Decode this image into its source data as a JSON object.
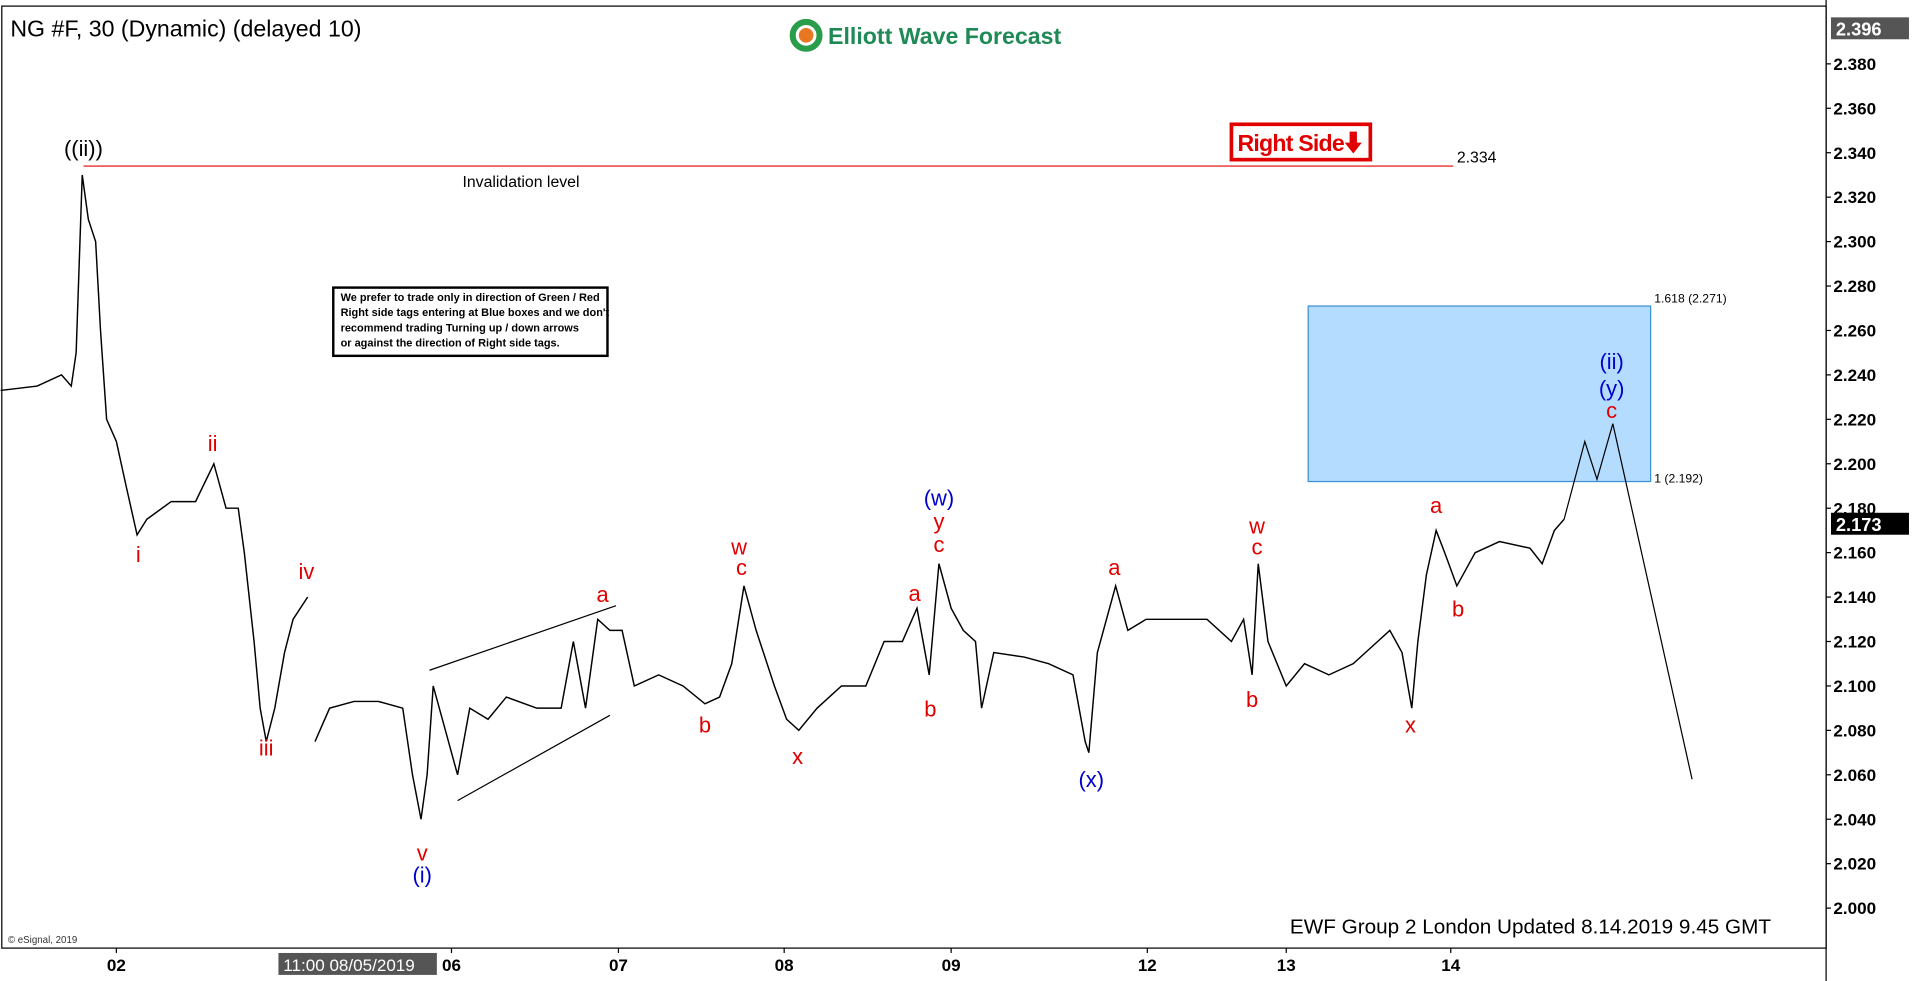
{
  "chart_data": {
    "type": "line",
    "title": "NG #F, 30 (Dynamic) (delayed 10)",
    "brand": "Elliott Wave Forecast",
    "color": "#000000",
    "x": [
      0,
      30,
      50,
      58,
      62,
      67,
      72,
      78,
      82,
      87,
      95,
      103,
      112,
      120,
      140,
      160,
      175,
      185,
      195,
      200,
      208,
      213,
      218,
      225,
      233,
      240,
      252,
      255,
      258,
      270,
      290,
      310,
      330,
      338,
      345,
      350,
      355,
      365,
      375,
      385,
      400,
      415,
      440,
      460,
      470,
      480,
      490,
      500,
      510,
      520,
      540,
      560,
      578,
      590,
      600,
      610,
      620,
      635,
      645,
      655,
      670,
      690,
      710,
      725,
      740,
      752,
      762,
      770,
      780,
      790,
      800,
      805,
      815,
      840,
      860,
      880,
      890,
      893,
      900,
      915,
      925,
      940,
      960,
      990,
      1010,
      1020,
      1027,
      1032,
      1040,
      1055,
      1070,
      1090,
      1110,
      1130,
      1140,
      1150,
      1158,
      1163,
      1170,
      1178,
      1185,
      1195,
      1210,
      1230,
      1255,
      1265,
      1275,
      1283
    ],
    "values": [
      2.233,
      2.235,
      2.24,
      2.235,
      2.25,
      2.33,
      2.31,
      2.3,
      2.26,
      2.22,
      2.21,
      2.19,
      2.168,
      2.175,
      2.183,
      2.183,
      2.2,
      2.18,
      2.18,
      2.16,
      2.12,
      2.09,
      2.075,
      2.09,
      2.115,
      2.13,
      2.14,
      null,
      2.075,
      2.09,
      2.093,
      2.093,
      2.09,
      2.06,
      2.04,
      2.06,
      2.1,
      2.08,
      2.06,
      2.09,
      2.085,
      2.095,
      2.09,
      2.09,
      2.12,
      2.09,
      2.13,
      2.125,
      2.125,
      2.1,
      2.105,
      2.1,
      2.092,
      2.095,
      2.11,
      2.145,
      2.125,
      2.1,
      2.085,
      2.08,
      2.09,
      2.1,
      2.1,
      2.12,
      2.12,
      2.135,
      2.105,
      2.155,
      2.135,
      2.125,
      2.12,
      2.09,
      2.115,
      2.113,
      2.11,
      2.105,
      2.075,
      2.07,
      2.115,
      2.145,
      2.125,
      2.13,
      2.13,
      2.13,
      2.12,
      2.13,
      2.105,
      2.155,
      2.12,
      2.1,
      2.11,
      2.105,
      2.11,
      2.12,
      2.125,
      2.115,
      2.09,
      2.12,
      2.15,
      2.17,
      2.16,
      2.145,
      2.16,
      2.165,
      2.162,
      2.155,
      2.17,
      2.175
    ],
    "projection": {
      "x": [
        1283,
        1300,
        1310,
        1323,
        1388
      ],
      "values": [
        2.175,
        2.21,
        2.193,
        2.218,
        2.058
      ]
    },
    "xlim": [
      0,
      1498
    ],
    "xticks": [
      {
        "value": 95,
        "label": "02"
      },
      {
        "value": 370,
        "label": "06"
      },
      {
        "value": 507,
        "label": "07"
      },
      {
        "value": 643,
        "label": "08"
      },
      {
        "value": 780,
        "label": "09"
      },
      {
        "value": 941,
        "label": "12"
      },
      {
        "value": 1055,
        "label": "13"
      },
      {
        "value": 1190,
        "label": "14"
      }
    ],
    "ylim": [
      1.982,
      2.406
    ],
    "yticks": [
      {
        "value": 2.0,
        "label": "2.000"
      },
      {
        "value": 2.02,
        "label": "2.020"
      },
      {
        "value": 2.04,
        "label": "2.040"
      },
      {
        "value": 2.06,
        "label": "2.060"
      },
      {
        "value": 2.08,
        "label": "2.080"
      },
      {
        "value": 2.1,
        "label": "2.100"
      },
      {
        "value": 2.12,
        "label": "2.120"
      },
      {
        "value": 2.14,
        "label": "2.140"
      },
      {
        "value": 2.16,
        "label": "2.160"
      },
      {
        "value": 2.18,
        "label": "2.180"
      },
      {
        "value": 2.2,
        "label": "2.200"
      },
      {
        "value": 2.22,
        "label": "2.220"
      },
      {
        "value": 2.24,
        "label": "2.240"
      },
      {
        "value": 2.26,
        "label": "2.260"
      },
      {
        "value": 2.28,
        "label": "2.280"
      },
      {
        "value": 2.3,
        "label": "2.300"
      },
      {
        "value": 2.32,
        "label": "2.320"
      },
      {
        "value": 2.34,
        "label": "2.340"
      },
      {
        "value": 2.36,
        "label": "2.360"
      },
      {
        "value": 2.38,
        "label": "2.380"
      }
    ],
    "invalidation": {
      "value": 2.334,
      "text": "Invalidation level"
    },
    "target_box": {
      "low": 2.192,
      "high": 2.271,
      "high_label": "1.618 (2.271)",
      "low_label": "1 (2.192)"
    },
    "last_price": 2.173,
    "top_price": 2.396,
    "right_side": "Right Side",
    "note": [
      "We prefer to trade only in direction of Green / Red",
      "Right side tags entering at Blue boxes and we don't",
      "recommend trading Turning up / down arrows",
      "or against the direction of Right side tags."
    ],
    "wave_labels": [
      {
        "text": "((ii))",
        "color": "#000000"
      },
      {
        "text": "i",
        "color": "#e00000"
      },
      {
        "text": "ii",
        "color": "#e00000"
      },
      {
        "text": "iii",
        "color": "#e00000"
      },
      {
        "text": "iv",
        "color": "#e00000"
      },
      {
        "text": "v",
        "color": "#e00000"
      },
      {
        "text": "(i)",
        "color": "#0000cc"
      },
      {
        "text": "a",
        "color": "#e00000"
      },
      {
        "text": "b",
        "color": "#e00000"
      },
      {
        "text": "w",
        "color": "#e00000"
      },
      {
        "text": "c",
        "color": "#e00000"
      },
      {
        "text": "x",
        "color": "#e00000"
      },
      {
        "text": "a",
        "color": "#e00000"
      },
      {
        "text": "b",
        "color": "#e00000"
      },
      {
        "text": "(w)",
        "color": "#0000cc"
      },
      {
        "text": "y",
        "color": "#e00000"
      },
      {
        "text": "c",
        "color": "#e00000"
      },
      {
        "text": "a",
        "color": "#e00000"
      },
      {
        "text": "(x)",
        "color": "#0000cc"
      },
      {
        "text": "w",
        "color": "#e00000"
      },
      {
        "text": "c",
        "color": "#e00000"
      },
      {
        "text": "b",
        "color": "#e00000"
      },
      {
        "text": "x",
        "color": "#e00000"
      },
      {
        "text": "a",
        "color": "#e00000"
      },
      {
        "text": "b",
        "color": "#e00000"
      },
      {
        "text": "(ii)",
        "color": "#0000cc"
      },
      {
        "text": "(y)",
        "color": "#0000cc"
      },
      {
        "text": "c",
        "color": "#e00000"
      }
    ],
    "footer": "EWF Group 2  London Updated 8.14.2019 9.45 GMT",
    "copyright": "© eSignal, 2019",
    "crosshair": "11:00 08/05/2019"
  }
}
